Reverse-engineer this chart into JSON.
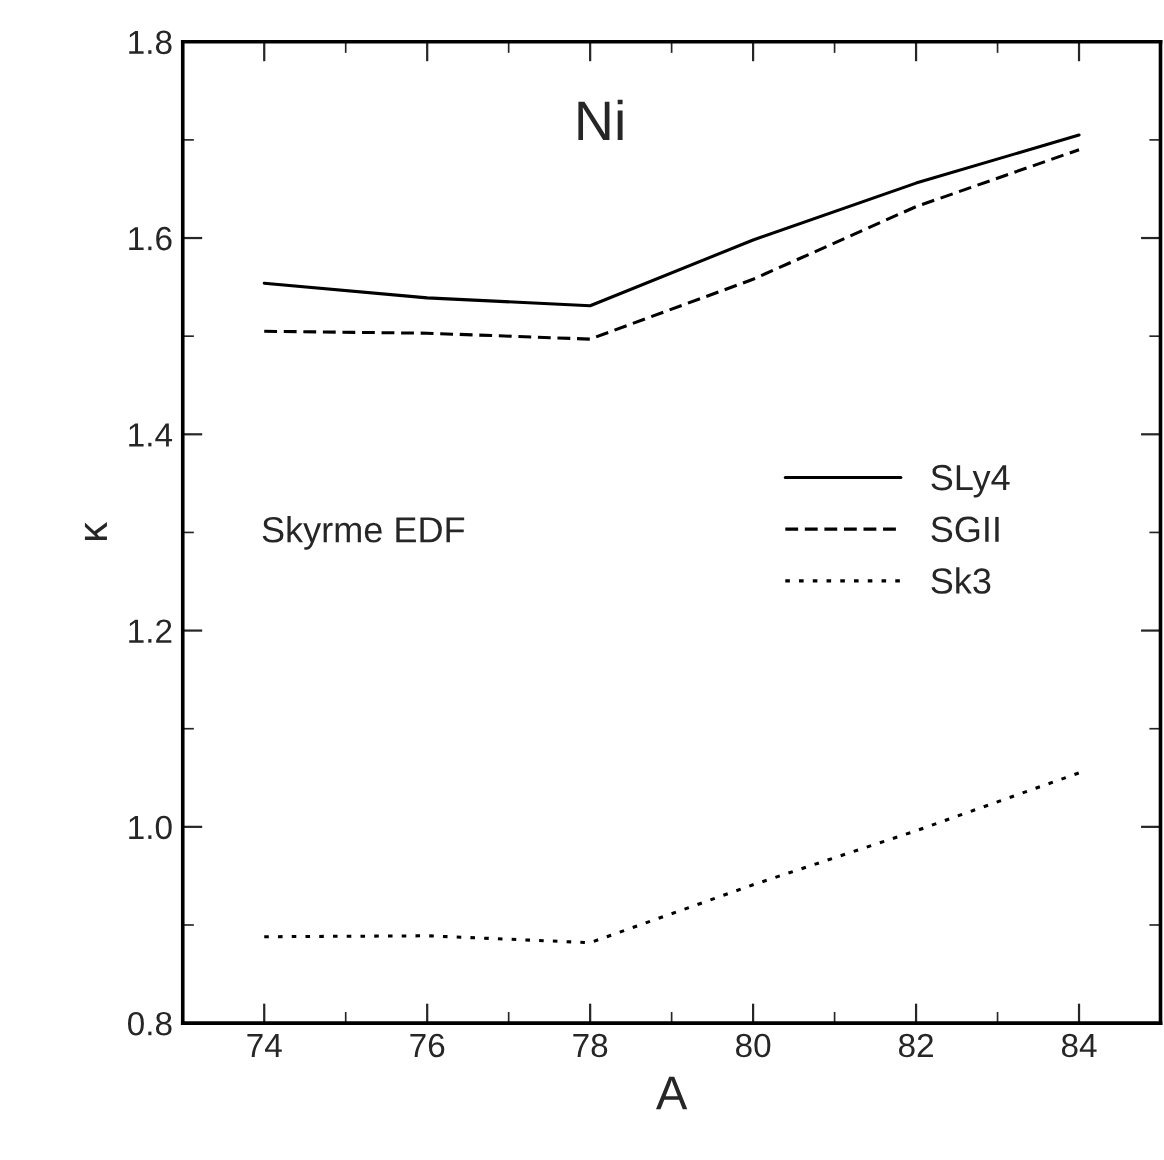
{
  "chart_data": {
    "type": "line",
    "xlabel": "A",
    "ylabel": "κ",
    "annotations": [
      "Ni",
      "Skyrme EDF"
    ],
    "x": [
      74,
      76,
      78,
      80,
      82,
      84
    ],
    "series": [
      {
        "name": "SLy4",
        "color": "#000000",
        "line_style": "solid",
        "values": [
          1.554,
          1.539,
          1.531,
          1.598,
          1.656,
          1.705
        ]
      },
      {
        "name": "SGII",
        "color": "#000000",
        "line_style": "dashed",
        "values": [
          1.505,
          1.503,
          1.497,
          1.558,
          1.632,
          1.69
        ]
      },
      {
        "name": "Sk3",
        "color": "#000000",
        "line_style": "dotted",
        "values": [
          0.888,
          0.889,
          0.882,
          0.941,
          0.996,
          1.055
        ]
      }
    ],
    "xlim": [
      73,
      85
    ],
    "xticks": [
      74,
      76,
      78,
      80,
      82,
      84
    ],
    "ylim": [
      0.8,
      1.8
    ],
    "yticks": [
      {
        "value": 0.8,
        "label": "0.8"
      },
      {
        "value": 1.0,
        "label": "1.0"
      },
      {
        "value": 1.2,
        "label": "1.2"
      },
      {
        "value": 1.4,
        "label": "1.4"
      },
      {
        "value": 1.6,
        "label": "1.6"
      },
      {
        "value": 1.8,
        "label": "1.8"
      }
    ],
    "grid": false,
    "legend": "center right",
    "marker": "none"
  }
}
